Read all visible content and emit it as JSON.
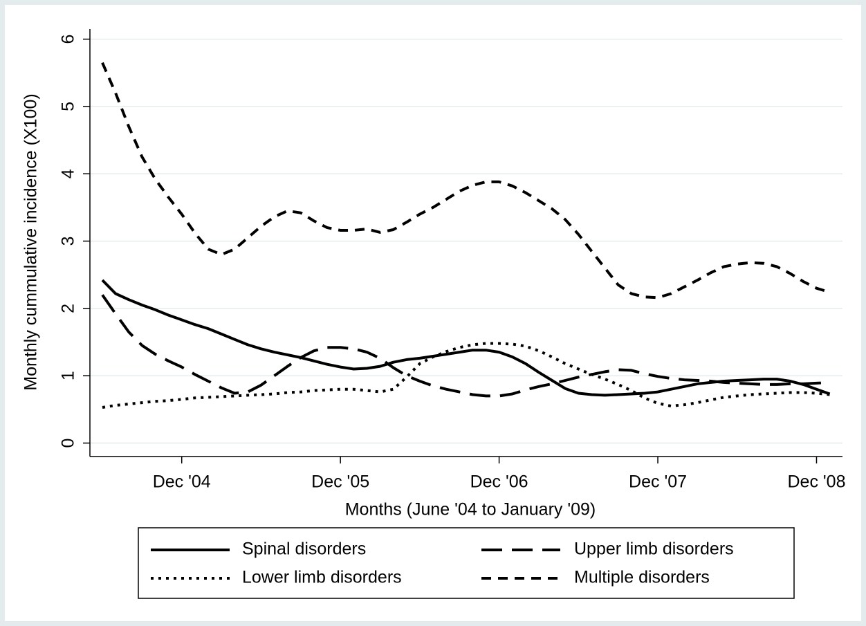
{
  "chart_data": {
    "type": "line",
    "x_label": "Months (June '04 to January '09)",
    "y_label": "Monthly cummulative incidence (X100)",
    "categories": [
      null,
      null,
      null,
      null,
      null,
      null,
      "Dec '04",
      null,
      null,
      null,
      null,
      null,
      null,
      null,
      null,
      null,
      null,
      null,
      "Dec '05",
      null,
      null,
      null,
      null,
      null,
      null,
      null,
      null,
      null,
      null,
      null,
      "Dec '06",
      null,
      null,
      null,
      null,
      null,
      null,
      null,
      null,
      null,
      null,
      null,
      "Dec '07",
      null,
      null,
      null,
      null,
      null,
      null,
      null,
      null,
      null,
      null,
      null,
      "Dec '08",
      null
    ],
    "ylim": [
      -0.2,
      6.15
    ],
    "yticks": [
      0,
      1,
      2,
      3,
      4,
      5,
      6
    ],
    "grid": true,
    "legend": "bottom",
    "series": [
      {
        "name": "Spinal disorders",
        "color": "#000000",
        "dash": "solid",
        "values": [
          2.42,
          2.22,
          2.13,
          2.05,
          1.98,
          1.9,
          1.83,
          1.76,
          1.7,
          1.62,
          1.54,
          1.46,
          1.4,
          1.35,
          1.31,
          1.27,
          1.22,
          1.17,
          1.13,
          1.1,
          1.11,
          1.14,
          1.2,
          1.24,
          1.26,
          1.29,
          1.32,
          1.35,
          1.38,
          1.38,
          1.35,
          1.28,
          1.18,
          1.05,
          0.93,
          0.81,
          0.74,
          0.72,
          0.71,
          0.72,
          0.73,
          0.74,
          0.76,
          0.8,
          0.84,
          0.88,
          0.9,
          0.92,
          0.93,
          0.94,
          0.95,
          0.95,
          0.92,
          0.87,
          0.8,
          0.73
        ]
      },
      {
        "name": "Upper limb disorders",
        "color": "#000000",
        "dash": "longdash",
        "values": [
          2.2,
          1.92,
          1.65,
          1.45,
          1.32,
          1.22,
          1.13,
          1.02,
          0.92,
          0.82,
          0.74,
          0.76,
          0.86,
          1.0,
          1.14,
          1.27,
          1.37,
          1.42,
          1.42,
          1.4,
          1.35,
          1.26,
          1.12,
          1.0,
          0.92,
          0.85,
          0.8,
          0.76,
          0.72,
          0.7,
          0.7,
          0.73,
          0.79,
          0.84,
          0.88,
          0.93,
          0.98,
          1.02,
          1.06,
          1.09,
          1.08,
          1.03,
          0.99,
          0.96,
          0.94,
          0.93,
          0.92,
          0.9,
          0.89,
          0.88,
          0.87,
          0.87,
          0.88,
          0.88,
          0.89,
          0.9
        ]
      },
      {
        "name": "Lower limb disorders",
        "color": "#000000",
        "dash": "dot",
        "values": [
          0.53,
          0.56,
          0.58,
          0.6,
          0.62,
          0.63,
          0.65,
          0.67,
          0.68,
          0.69,
          0.7,
          0.71,
          0.72,
          0.73,
          0.75,
          0.76,
          0.78,
          0.79,
          0.8,
          0.8,
          0.78,
          0.76,
          0.8,
          0.98,
          1.18,
          1.28,
          1.36,
          1.42,
          1.46,
          1.48,
          1.48,
          1.47,
          1.44,
          1.37,
          1.28,
          1.18,
          1.1,
          1.02,
          0.95,
          0.87,
          0.78,
          0.67,
          0.59,
          0.55,
          0.57,
          0.6,
          0.64,
          0.68,
          0.7,
          0.72,
          0.73,
          0.74,
          0.75,
          0.75,
          0.74,
          0.72
        ]
      },
      {
        "name": "Multiple disorders",
        "color": "#000000",
        "dash": "shortdash",
        "values": [
          5.65,
          5.2,
          4.7,
          4.25,
          3.92,
          3.65,
          3.4,
          3.12,
          2.88,
          2.8,
          2.88,
          3.05,
          3.22,
          3.36,
          3.45,
          3.42,
          3.3,
          3.2,
          3.16,
          3.16,
          3.18,
          3.13,
          3.17,
          3.28,
          3.4,
          3.5,
          3.62,
          3.74,
          3.83,
          3.88,
          3.88,
          3.82,
          3.72,
          3.6,
          3.48,
          3.32,
          3.1,
          2.85,
          2.6,
          2.35,
          2.22,
          2.17,
          2.16,
          2.22,
          2.32,
          2.42,
          2.53,
          2.62,
          2.66,
          2.68,
          2.67,
          2.62,
          2.52,
          2.4,
          2.3,
          2.24
        ]
      }
    ]
  }
}
